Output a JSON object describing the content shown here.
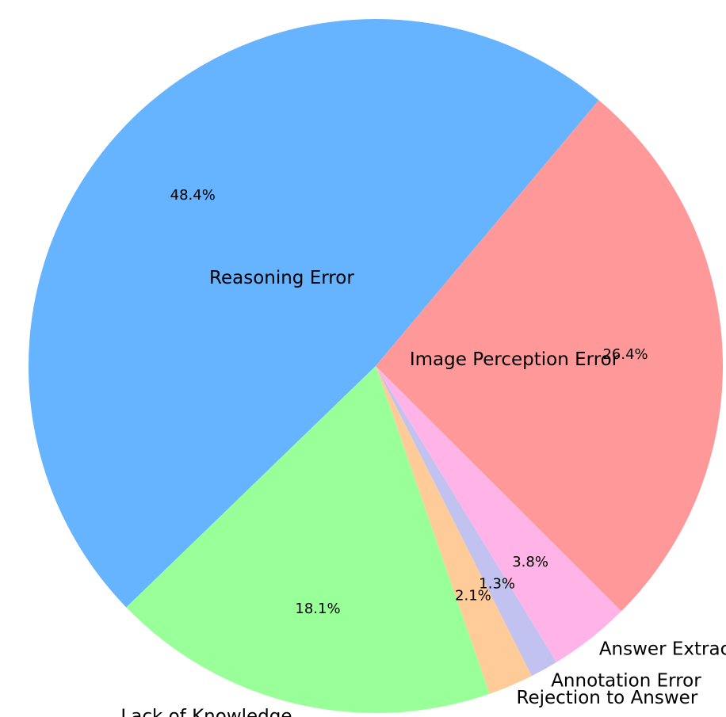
{
  "chart_data": {
    "type": "pie",
    "title": "",
    "start_angle_deg": 50,
    "direction": "counterclockwise",
    "slices": [
      {
        "label": "Reasoning Error",
        "value": 48.4,
        "pct_label": "48.4%",
        "color": "#66b3ff"
      },
      {
        "label": "Lack of Knowledge",
        "value": 18.1,
        "pct_label": "18.1%",
        "color": "#99ff99"
      },
      {
        "label": "Rejection to Answer",
        "value": 2.1,
        "pct_label": "2.1%",
        "color": "#ffcc99"
      },
      {
        "label": "Annotation Error",
        "value": 1.3,
        "pct_label": "1.3%",
        "color": "#c2c2f0"
      },
      {
        "label": "Answer Extraction Error",
        "value": 3.8,
        "pct_label": "3.8%",
        "color": "#ffb3e6"
      },
      {
        "label": "Image Perception Error",
        "value": 26.4,
        "pct_label": "26.4%",
        "color": "#ff9999"
      }
    ]
  }
}
